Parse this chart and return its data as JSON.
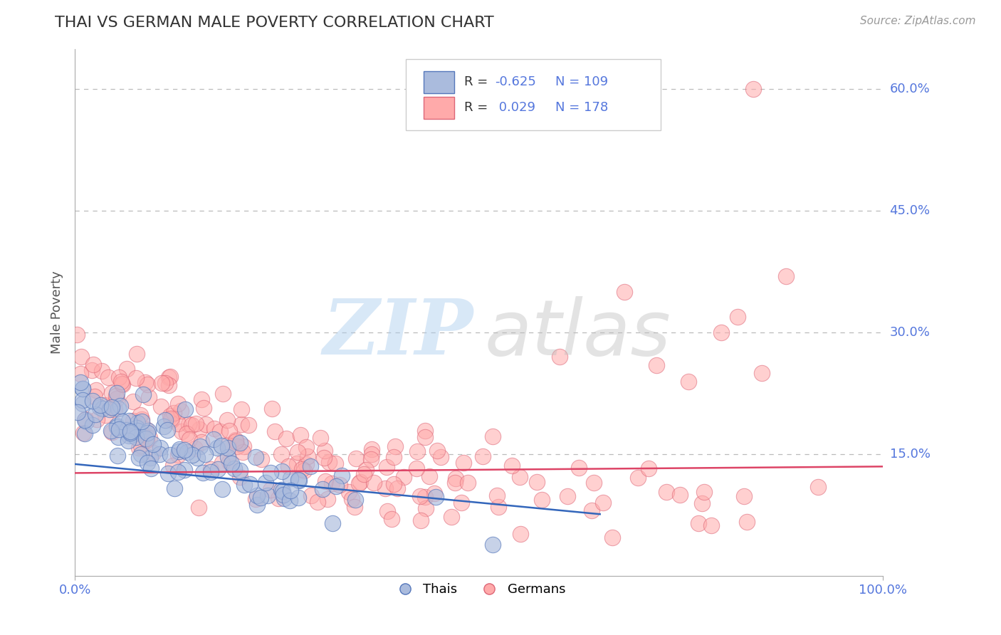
{
  "title": "THAI VS GERMAN MALE POVERTY CORRELATION CHART",
  "source": "Source: ZipAtlas.com",
  "ylabel": "Male Poverty",
  "x_min": 0.0,
  "x_max": 1.0,
  "y_min": 0.0,
  "y_max": 0.65,
  "y_ticks": [
    0.15,
    0.3,
    0.45,
    0.6
  ],
  "y_tick_labels": [
    "15.0%",
    "30.0%",
    "45.0%",
    "60.0%"
  ],
  "thai_R": -0.625,
  "thai_N": 109,
  "german_R": 0.029,
  "german_N": 178,
  "thai_fill_color": "#AABBDD",
  "thai_edge_color": "#5577BB",
  "german_fill_color": "#FFAAAA",
  "german_edge_color": "#DD6677",
  "trend_thai_color": "#3366BB",
  "trend_german_color": "#DD4466",
  "background_color": "#FFFFFF",
  "grid_color": "#BBBBBB",
  "title_color": "#333333",
  "axis_label_color": "#555555",
  "tick_label_color": "#5577DD",
  "legend_text_color": "#5577DD",
  "legend_r_color": "#5577DD",
  "watermark_ZIP_color": "#AACCEE",
  "watermark_atlas_color": "#BBBBBB",
  "figwidth": 14.06,
  "figheight": 8.92
}
